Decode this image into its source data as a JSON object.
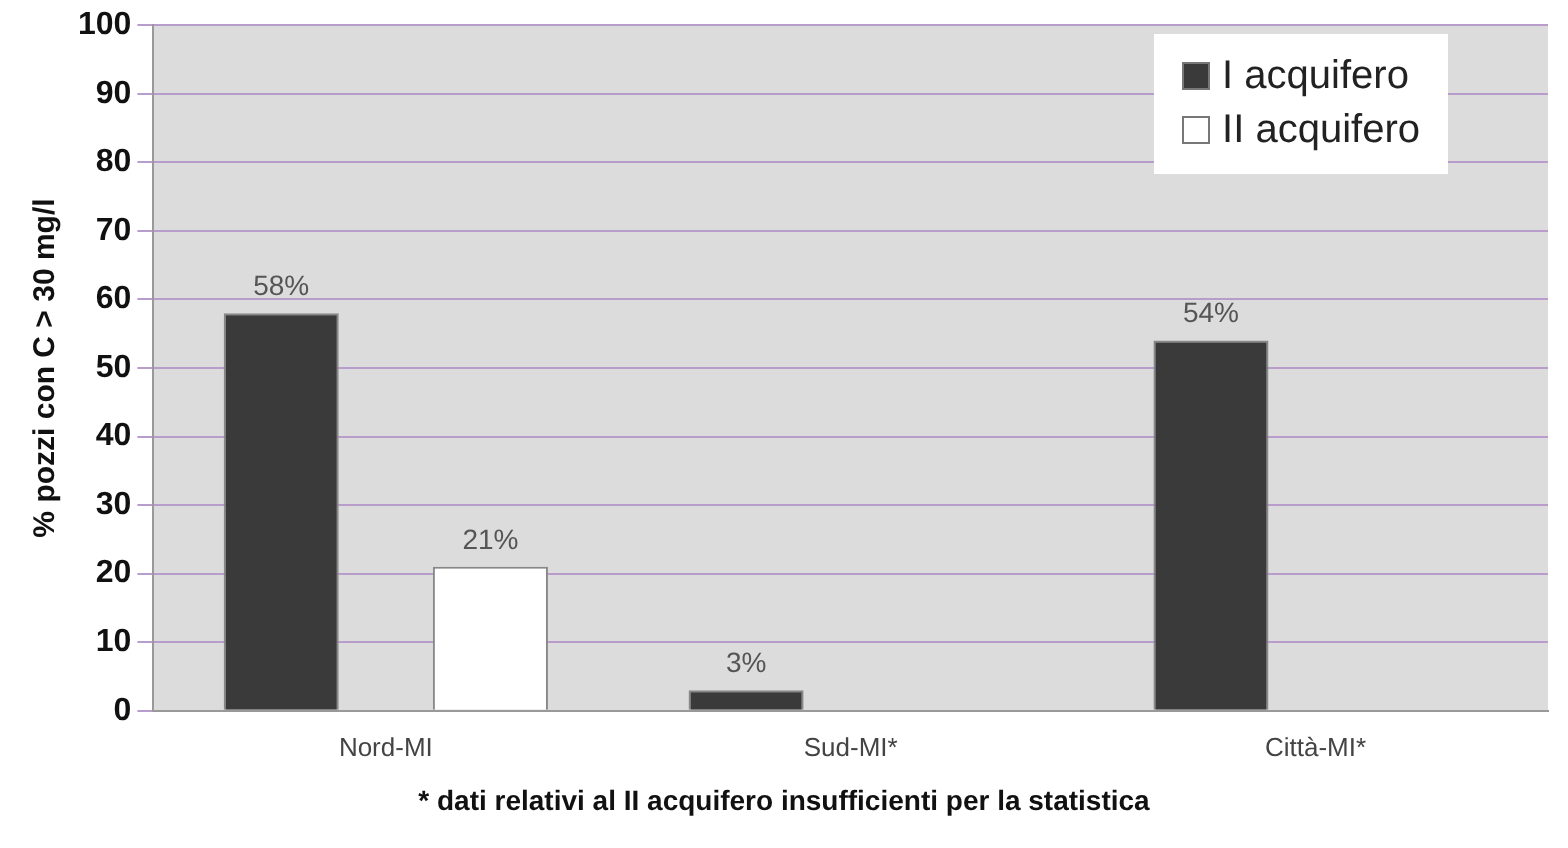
{
  "chart_data": {
    "type": "bar",
    "ylabel": "% pozzi con C > 30 mg/l",
    "categories": [
      "Nord-MI",
      "Sud-MI*",
      "Città-MI*"
    ],
    "series": [
      {
        "name": "I acquifero",
        "color": "#3a3a3a",
        "values": [
          58,
          3,
          54
        ],
        "value_labels": [
          "58%",
          "3%",
          "54%"
        ]
      },
      {
        "name": "II acquifero",
        "color": "#ffffff",
        "values": [
          21,
          null,
          null
        ],
        "value_labels": [
          "21%",
          null,
          null
        ]
      }
    ],
    "ylim": [
      0,
      100
    ],
    "yticks": [
      0,
      10,
      20,
      30,
      40,
      50,
      60,
      70,
      80,
      90,
      100
    ],
    "grid": "y",
    "legend": "top right",
    "annotations": [
      "* dati relativi al II acquifero insufficienti per la statistica"
    ]
  }
}
